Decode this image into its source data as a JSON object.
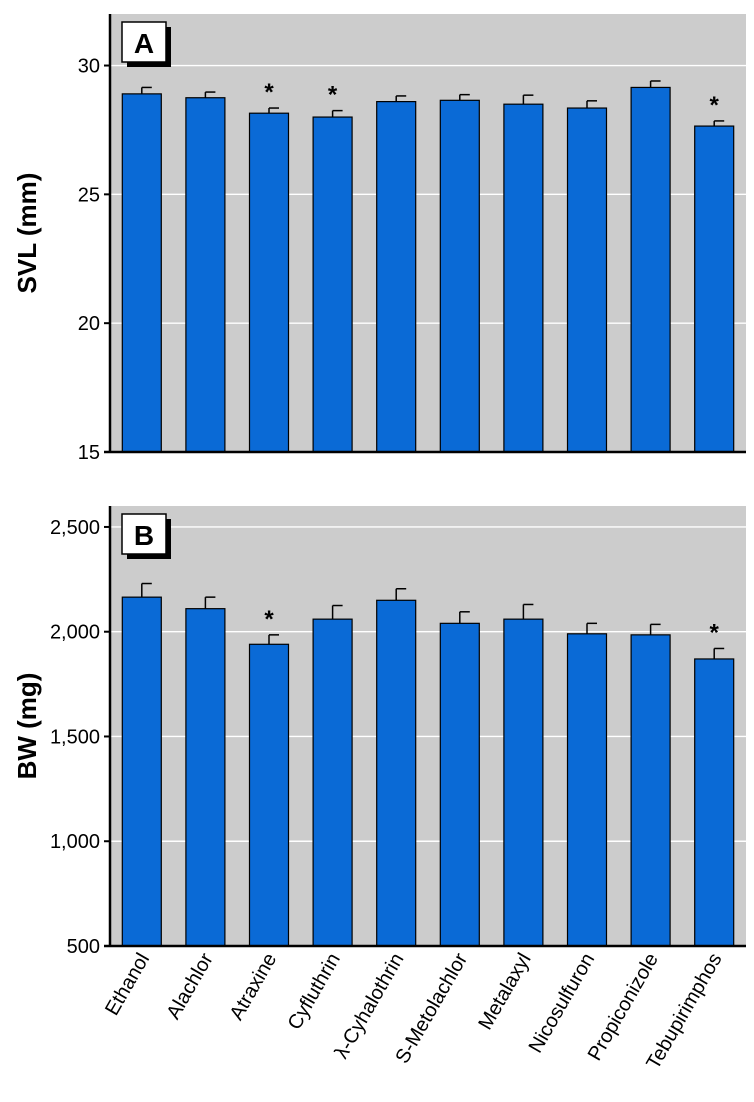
{
  "chart_data": [
    {
      "type": "bar",
      "panel_label": "A",
      "ylabel": "SVL (mm)",
      "ylim": [
        15,
        32
      ],
      "yticks": [
        15,
        20,
        25,
        30
      ],
      "ytick_labels": [
        "15",
        "20",
        "25",
        "30"
      ],
      "grid": true,
      "categories": [
        "Ethanol",
        "Alachlor",
        "Atraxine",
        "Cyfluthrin",
        "λ-Cyhalothrin",
        "S-Metolachlor",
        "Metalaxyl",
        "Nicosulfuron",
        "Propiconizole",
        "Tebupirimphos"
      ],
      "values": [
        28.9,
        28.75,
        28.15,
        28.0,
        28.6,
        28.65,
        28.5,
        28.35,
        29.15,
        27.65
      ],
      "errors": [
        0.25,
        0.22,
        0.2,
        0.25,
        0.22,
        0.22,
        0.35,
        0.28,
        0.25,
        0.2
      ],
      "significant": [
        false,
        false,
        true,
        true,
        false,
        false,
        false,
        false,
        false,
        true
      ],
      "significance_marker": "*"
    },
    {
      "type": "bar",
      "panel_label": "B",
      "ylabel": "BW (mg)",
      "ylim": [
        500,
        2600
      ],
      "yticks": [
        500,
        1000,
        1500,
        2000,
        2500
      ],
      "ytick_labels": [
        "500",
        "1,000",
        "1,500",
        "2,000",
        "2,500"
      ],
      "grid": true,
      "categories": [
        "Ethanol",
        "Alachlor",
        "Atraxine",
        "Cyfluthrin",
        "λ-Cyhalothrin",
        "S-Metolachlor",
        "Metalaxyl",
        "Nicosulfuron",
        "Propiconizole",
        "Tebupirimphos"
      ],
      "values": [
        2165,
        2110,
        1940,
        2060,
        2150,
        2040,
        2060,
        1990,
        1985,
        1870
      ],
      "errors": [
        65,
        55,
        45,
        65,
        55,
        55,
        70,
        50,
        50,
        50
      ],
      "significant": [
        false,
        false,
        true,
        false,
        false,
        false,
        false,
        false,
        false,
        true
      ],
      "significance_marker": "*"
    }
  ],
  "style": {
    "bar_color": "#0a6ad6",
    "plot_background": "#cccccc",
    "grid_color": "#ffffff",
    "axis_color": "#000000"
  }
}
